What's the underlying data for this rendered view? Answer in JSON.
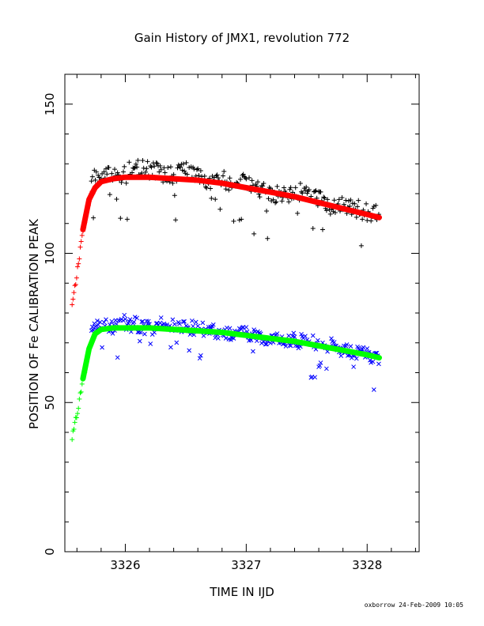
{
  "chart_data": {
    "type": "scatter",
    "title": "Gain History of JMX1, revolution 772",
    "xlabel": "TIME IN IJD",
    "ylabel": "POSITION OF Fe CALIBRATION PEAK",
    "xlim": [
      3325.5,
      3328.43
    ],
    "ylim": [
      0,
      160
    ],
    "xticks": [
      3326,
      3327,
      3328
    ],
    "yticks": [
      0,
      50,
      100,
      150
    ],
    "footer": "oxborrow 24-Feb-2009 10:05",
    "colors": {
      "upper_points": "#000000",
      "upper_fit": "#ff0000",
      "upper_early": "#ff0000",
      "lower_points": "#0000ff",
      "lower_fit": "#00ff00",
      "lower_early": "#00ff00"
    },
    "series": [
      {
        "marker": "+",
        "x": [
          3325.6,
          3325.63,
          3325.65,
          3325.68,
          3325.7,
          3325.75,
          3325.8,
          3325.9,
          3326.0,
          3326.1,
          3326.2,
          3326.3,
          3326.4,
          3326.5,
          3326.6,
          3326.7,
          3326.8,
          3326.9,
          3327.0,
          3327.1,
          3327.2,
          3327.3,
          3327.4,
          3327.5,
          3327.6,
          3327.7,
          3327.8,
          3327.9,
          3328.0,
          3328.1
        ],
        "values": [
          92,
          103,
          110,
          118,
          124,
          126,
          127,
          126,
          127,
          129,
          128,
          127,
          126,
          128,
          127,
          124,
          125,
          123,
          124,
          122,
          120,
          119,
          121,
          120,
          118,
          116,
          117,
          115,
          114,
          113
        ]
      },
      {
        "marker": "curve",
        "x": [
          3325.55,
          3325.6,
          3325.65,
          3325.7,
          3325.75,
          3325.8,
          3325.9,
          3326.0,
          3326.2,
          3326.4,
          3326.6,
          3326.8,
          3327.0,
          3327.2,
          3327.4,
          3327.6,
          3327.8,
          3328.0,
          3328.1
        ],
        "values": [
          80,
          93,
          108,
          118,
          122,
          124,
          125,
          125.5,
          125.5,
          125,
          124.5,
          123.5,
          122,
          120.5,
          119,
          117,
          115,
          113,
          112
        ]
      },
      {
        "marker": "x",
        "x": [
          3325.6,
          3325.63,
          3325.65,
          3325.68,
          3325.7,
          3325.75,
          3325.8,
          3325.9,
          3326.0,
          3326.1,
          3326.2,
          3326.3,
          3326.4,
          3326.5,
          3326.6,
          3326.7,
          3326.8,
          3326.9,
          3327.0,
          3327.1,
          3327.2,
          3327.3,
          3327.4,
          3327.5,
          3327.6,
          3327.7,
          3327.8,
          3327.9,
          3328.0,
          3328.1
        ],
        "values": [
          42,
          55,
          63,
          70,
          75,
          76,
          76,
          75,
          77,
          76,
          75,
          76,
          76,
          75,
          75,
          74,
          74,
          73,
          73,
          72,
          72,
          71,
          71,
          70,
          70,
          69,
          68,
          67,
          66,
          65
        ]
      },
      {
        "marker": "curve",
        "x": [
          3325.55,
          3325.6,
          3325.65,
          3325.7,
          3325.75,
          3325.8,
          3325.9,
          3326.0,
          3326.2,
          3326.4,
          3326.6,
          3326.8,
          3327.0,
          3327.2,
          3327.4,
          3327.6,
          3327.8,
          3328.0,
          3328.1
        ],
        "values": [
          36,
          46,
          58,
          68,
          73,
          74.5,
          75,
          75,
          75,
          74.5,
          74,
          73.5,
          72.5,
          71.5,
          70.5,
          69,
          67.5,
          66,
          65
        ]
      }
    ]
  }
}
